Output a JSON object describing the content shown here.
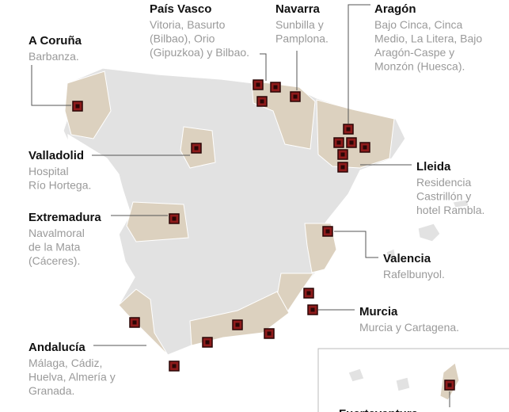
{
  "labels": [
    {
      "title": "A Coruña",
      "lines": [
        "Barbanza."
      ]
    },
    {
      "title": "País Vasco",
      "lines": [
        "Vitoria, Basurto",
        "(Bilbao), Orio",
        "(Gipuzkoa) y Bilbao."
      ]
    },
    {
      "title": "Navarra",
      "lines": [
        "Sunbilla y",
        "Pamplona."
      ]
    },
    {
      "title": "Aragón",
      "lines": [
        "Bajo Cinca, Cinca",
        "Medio, La Litera,  Bajo",
        "Aragón-Caspe y",
        "Monzón (Huesca)."
      ]
    },
    {
      "title": "Valladolid",
      "lines": [
        "Hospital",
        "Río Hortega."
      ]
    },
    {
      "title": "Lleida",
      "lines": [
        "Residencia",
        "Castrillón y",
        "hotel Rambla."
      ]
    },
    {
      "title": "Extremadura",
      "lines": [
        "Navalmoral",
        "de la Mata",
        "(Cáceres)."
      ]
    },
    {
      "title": "Valencia",
      "lines": [
        "Rafelbunyol."
      ]
    },
    {
      "title": "Murcia",
      "lines": [
        "Murcia y Cartagena."
      ]
    },
    {
      "title": "Andalucía",
      "lines": [
        "Málaga, Cádiz,",
        "Huelva, Almería y",
        "Granada."
      ]
    },
    {
      "title": "Fuerteventura",
      "lines": []
    }
  ]
}
